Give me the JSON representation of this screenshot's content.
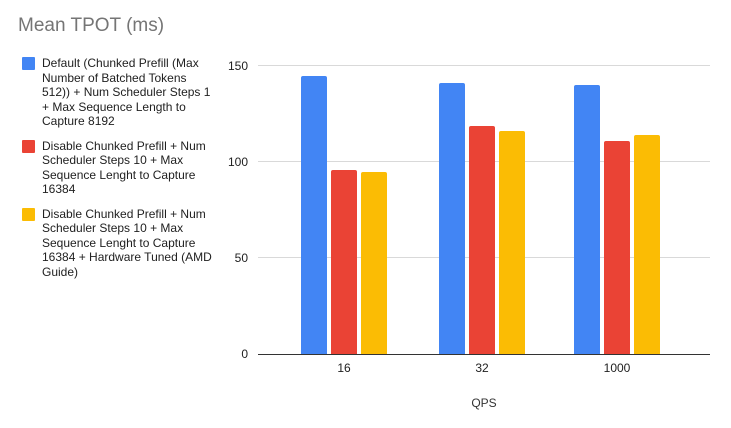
{
  "chart_data": {
    "type": "bar",
    "title": "Mean TPOT (ms)",
    "xlabel": "QPS",
    "ylabel": "",
    "ylim": [
      0,
      150
    ],
    "yticks": [
      0,
      50,
      100,
      150
    ],
    "grid": true,
    "legend_position": "left",
    "categories": [
      "16",
      "32",
      "1000"
    ],
    "series": [
      {
        "name": "Default (Chunked Prefill (Max Number of Batched Tokens 512)) + Num Scheduler Steps 1 + Max Sequence Length to Capture 8192",
        "color": "#4285F4",
        "values": [
          145,
          141,
          140
        ]
      },
      {
        "name": "Disable Chunked Prefill + Num Scheduler Steps 10 + Max Sequence Lenght to Capture 16384",
        "color": "#EA4335",
        "values": [
          96,
          119,
          111
        ]
      },
      {
        "name": "Disable Chunked Prefill + Num Scheduler Steps 10 + Max Sequence Lenght to Capture 16384 + Hardware Tuned (AMD Guide)",
        "color": "#FBBC04",
        "values": [
          95,
          116,
          114
        ]
      }
    ]
  }
}
